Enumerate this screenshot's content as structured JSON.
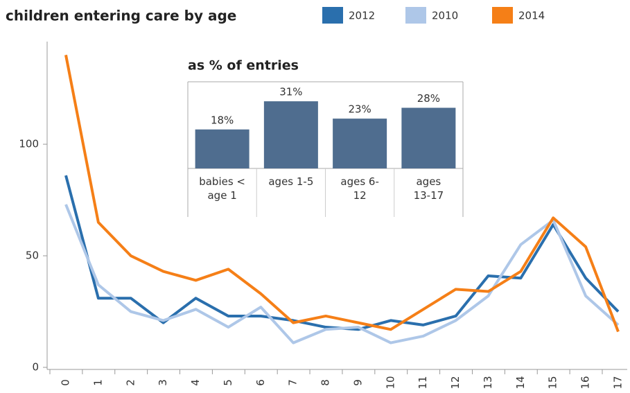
{
  "chart_data": [
    {
      "type": "line",
      "title": "children entering care by age",
      "x": [
        0,
        1,
        2,
        3,
        4,
        5,
        6,
        7,
        8,
        9,
        10,
        11,
        12,
        13,
        14,
        15,
        16,
        17
      ],
      "xlim": [
        0,
        17
      ],
      "xticks": [
        0,
        1,
        2,
        3,
        4,
        5,
        6,
        7,
        8,
        9,
        10,
        11,
        12,
        13,
        14,
        15,
        16,
        17
      ],
      "ylim": [
        0,
        146
      ],
      "yticks": [
        0,
        50,
        100
      ],
      "series": [
        {
          "name": "2012",
          "color": "#2a6fad",
          "values": [
            86,
            31,
            31,
            20,
            31,
            23,
            23,
            21,
            18,
            17,
            21,
            19,
            23,
            41,
            40,
            64,
            40,
            25
          ]
        },
        {
          "name": "2010",
          "color": "#aec7e8",
          "values": [
            73,
            37,
            25,
            21,
            26,
            18,
            27,
            11,
            17,
            18,
            11,
            14,
            21,
            32,
            55,
            66,
            32,
            19
          ]
        },
        {
          "name": "2014",
          "color": "#f57f17",
          "values": [
            140,
            65,
            50,
            43,
            39,
            44,
            33,
            20,
            23,
            20,
            17,
            26,
            35,
            34,
            43,
            67,
            54,
            16
          ]
        }
      ]
    },
    {
      "type": "bar",
      "title": "as % of entries",
      "categories": [
        "babies < age 1",
        "ages 1-5",
        "ages 6-12",
        "ages 13-17"
      ],
      "values": [
        18,
        31,
        23,
        28
      ],
      "value_labels": [
        "18%",
        "31%",
        "23%",
        "28%"
      ],
      "color": "#4f6d8f",
      "ylim": [
        0,
        40
      ]
    }
  ]
}
